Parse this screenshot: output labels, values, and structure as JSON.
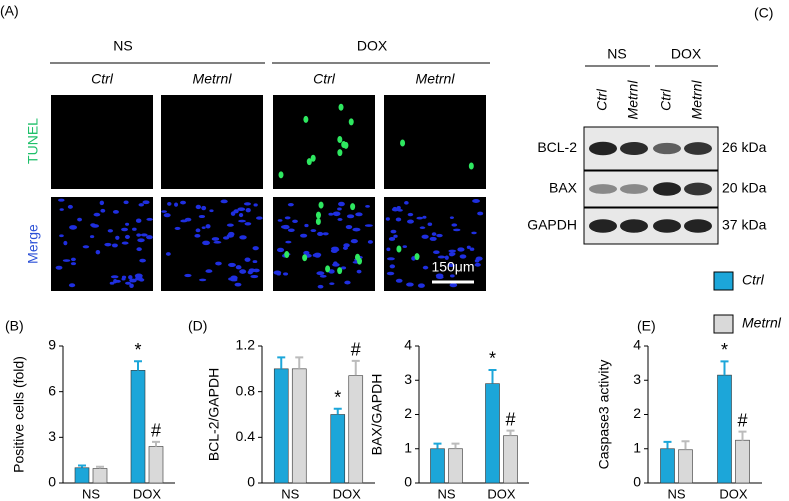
{
  "panel_labels": [
    "(A)",
    "(B)",
    "(C)",
    "(D)",
    "(E)"
  ],
  "microscopy": {
    "groups": [
      "NS",
      "DOX"
    ],
    "columns": [
      "Ctrl",
      "Metrnl",
      "Ctrl",
      "Metrnl"
    ],
    "rows": [
      "TUNEL",
      "Merge"
    ],
    "scale_bar": "150μm"
  },
  "western": {
    "groups": [
      "NS",
      "DOX"
    ],
    "lanes": [
      "Ctrl",
      "Metrnl",
      "Ctrl",
      "Metrnl"
    ],
    "proteins": [
      {
        "name": "BCL-2",
        "size": "26 kDa"
      },
      {
        "name": "BAX",
        "size": "20 kDa"
      },
      {
        "name": "GAPDH",
        "size": "37 kDa"
      }
    ]
  },
  "legend": [
    {
      "name": "Ctrl",
      "color": "#1ca6d9"
    },
    {
      "name": "Metrnl",
      "color": "#d9d9d9"
    }
  ],
  "chart_data": [
    {
      "type": "bar",
      "ylabel": "Positive cells (fold)",
      "categories": [
        "NS",
        "DOX"
      ],
      "ylim": [
        0,
        9
      ],
      "yticks": [
        0,
        3,
        6,
        9
      ],
      "series": [
        {
          "values": [
            1.0,
            7.4
          ],
          "errors": [
            0.15,
            0.6
          ],
          "sig": [
            null,
            "*"
          ]
        },
        {
          "values": [
            0.95,
            2.4
          ],
          "errors": [
            0.12,
            0.3
          ],
          "sig": [
            null,
            "#"
          ]
        }
      ]
    },
    {
      "type": "bar",
      "ylabel": "BCL-2/GAPDH",
      "categories": [
        "NS",
        "DOX"
      ],
      "ylim": [
        0,
        1.2
      ],
      "yticks": [
        0,
        0.4,
        0.8,
        1.2
      ],
      "series": [
        {
          "values": [
            1.0,
            0.6
          ],
          "errors": [
            0.1,
            0.05
          ],
          "sig": [
            null,
            "*"
          ]
        },
        {
          "values": [
            1.0,
            0.94
          ],
          "errors": [
            0.1,
            0.13
          ],
          "sig": [
            null,
            "#"
          ]
        }
      ]
    },
    {
      "type": "bar",
      "ylabel": "BAX/GAPDH",
      "categories": [
        "NS",
        "DOX"
      ],
      "ylim": [
        0,
        4
      ],
      "yticks": [
        0,
        1,
        2,
        3,
        4
      ],
      "series": [
        {
          "values": [
            1.0,
            2.9
          ],
          "errors": [
            0.15,
            0.4
          ],
          "sig": [
            null,
            "*"
          ]
        },
        {
          "values": [
            1.0,
            1.38
          ],
          "errors": [
            0.15,
            0.15
          ],
          "sig": [
            null,
            "#"
          ]
        }
      ]
    },
    {
      "type": "bar",
      "ylabel": "Caspase3 activity",
      "categories": [
        "NS",
        "DOX"
      ],
      "ylim": [
        0,
        4
      ],
      "yticks": [
        0,
        1,
        2,
        3,
        4
      ],
      "series": [
        {
          "values": [
            1.0,
            3.15
          ],
          "errors": [
            0.2,
            0.4
          ],
          "sig": [
            null,
            "*"
          ]
        },
        {
          "values": [
            0.97,
            1.25
          ],
          "errors": [
            0.25,
            0.25
          ],
          "sig": [
            null,
            "#"
          ]
        }
      ]
    }
  ]
}
